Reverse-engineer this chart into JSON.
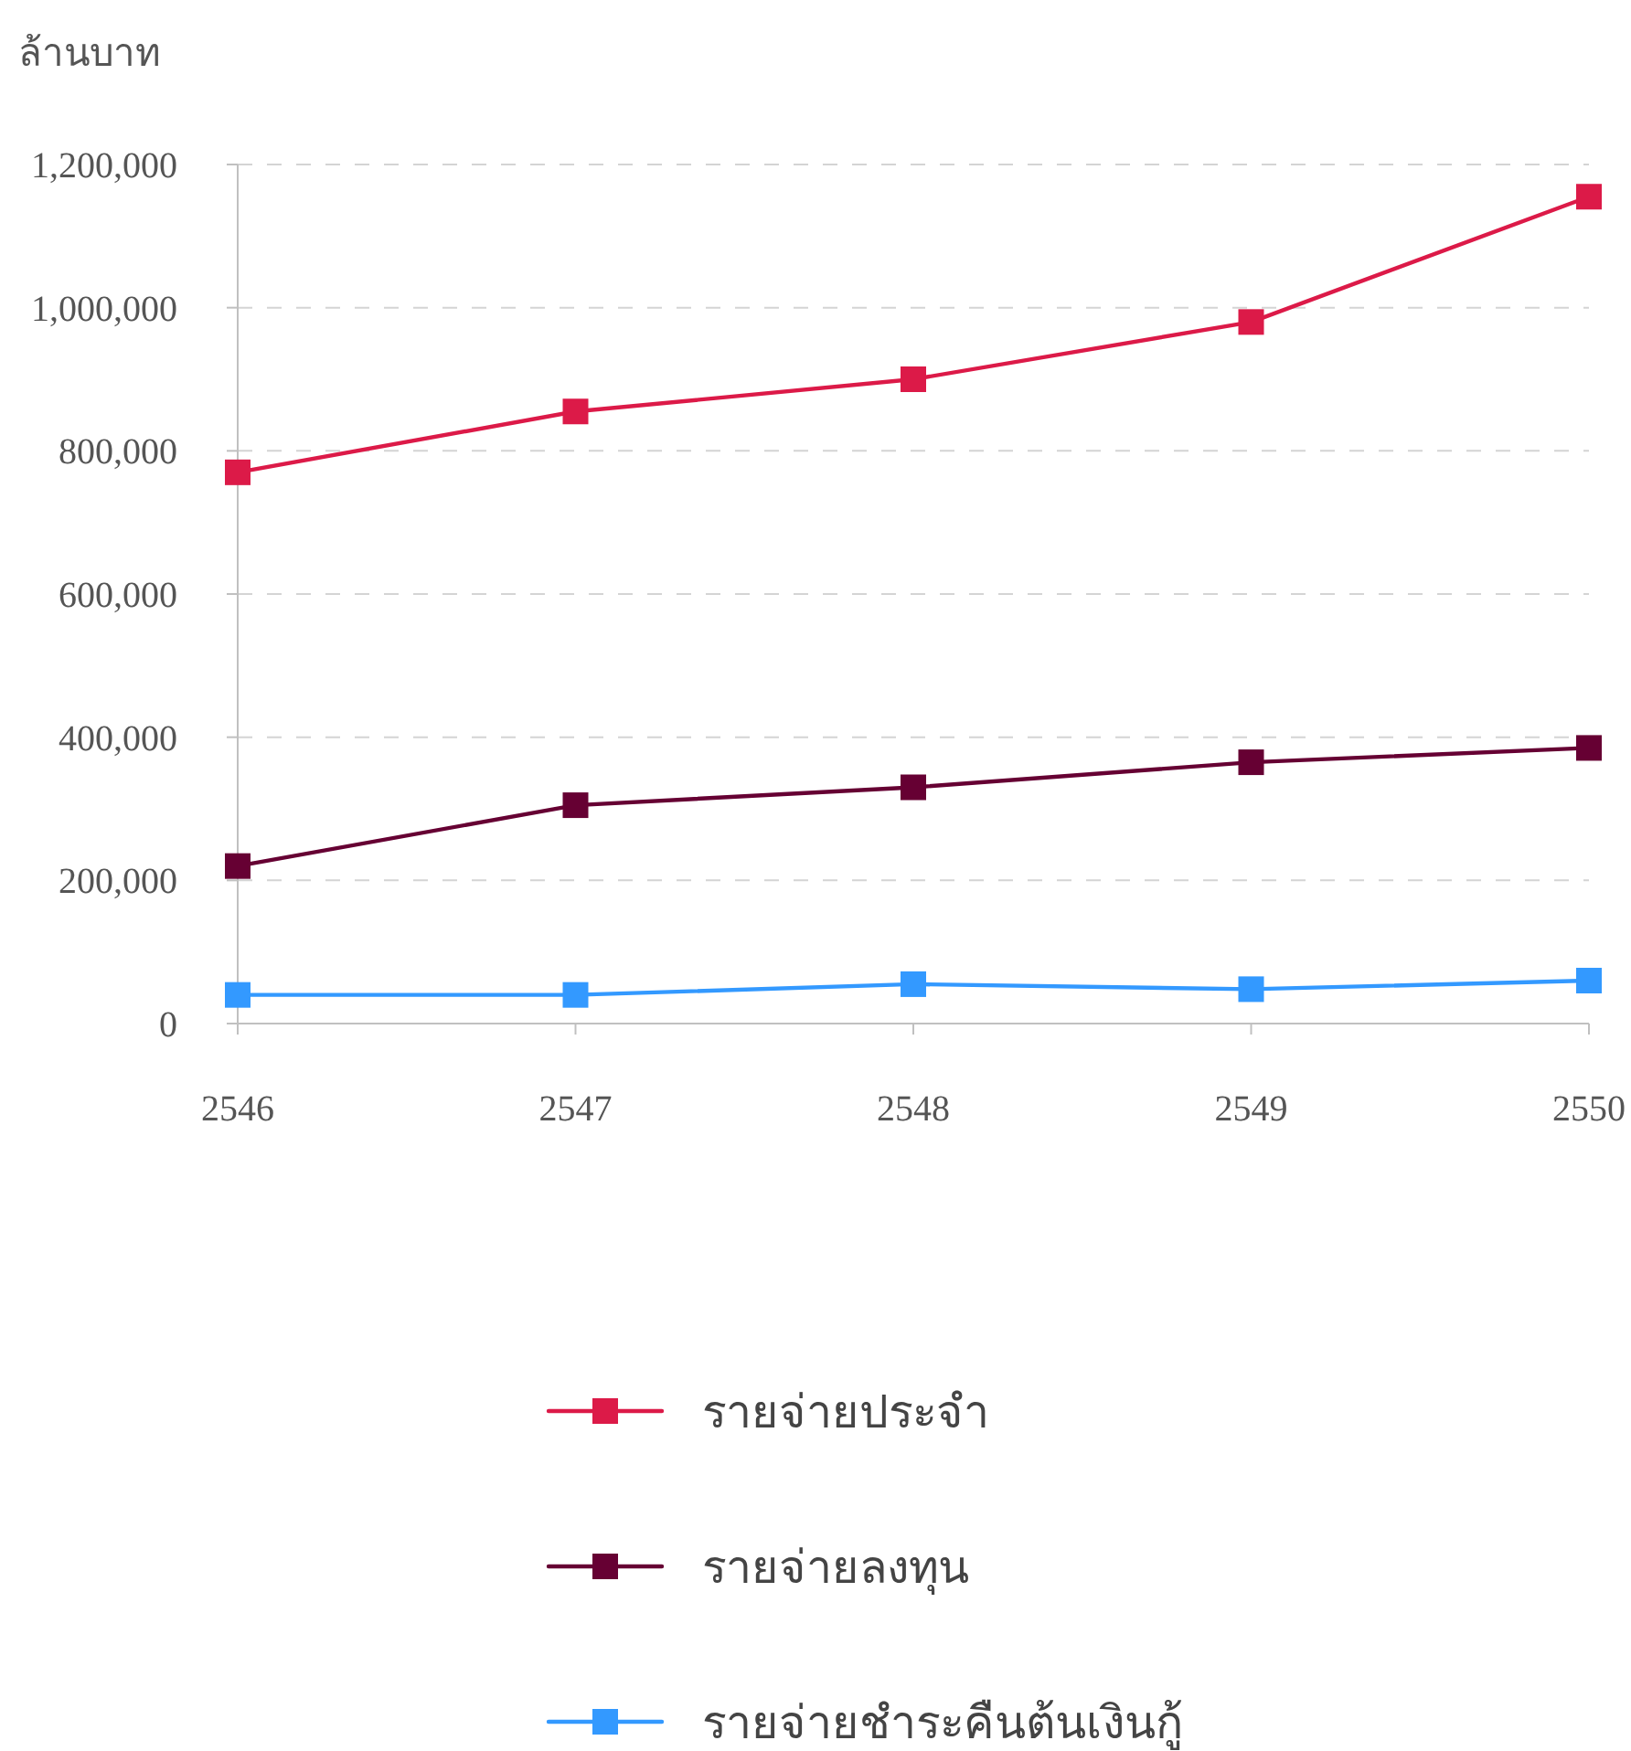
{
  "chart_data": {
    "type": "line",
    "ylabel": "ล้านบาท",
    "categories": [
      "2546",
      "2547",
      "2548",
      "2549",
      "2550"
    ],
    "series": [
      {
        "name": "รายจ่ายประจำ",
        "color": "#dc1a48",
        "values": [
          770000,
          855000,
          900000,
          980000,
          1155000
        ]
      },
      {
        "name": "รายจ่ายลงทุน",
        "color": "#660033",
        "values": [
          220000,
          305000,
          330000,
          365000,
          385000
        ]
      },
      {
        "name": "รายจ่ายชำระคืนต้นเงินกู้",
        "color": "#3399ff",
        "values": [
          40000,
          40000,
          55000,
          48000,
          60000
        ]
      }
    ],
    "ylim": [
      0,
      1200000
    ],
    "yticks": [
      {
        "value": 0,
        "label": "0"
      },
      {
        "value": 200000,
        "label": "200,000"
      },
      {
        "value": 400000,
        "label": "400,000"
      },
      {
        "value": 600000,
        "label": "600,000"
      },
      {
        "value": 800000,
        "label": "800,000"
      },
      {
        "value": 1000000,
        "label": "1,000,000"
      },
      {
        "value": 1200000,
        "label": "1,200,000"
      }
    ],
    "grid": "y",
    "legend": "bottom",
    "marker": "square",
    "line_style": "solid"
  }
}
